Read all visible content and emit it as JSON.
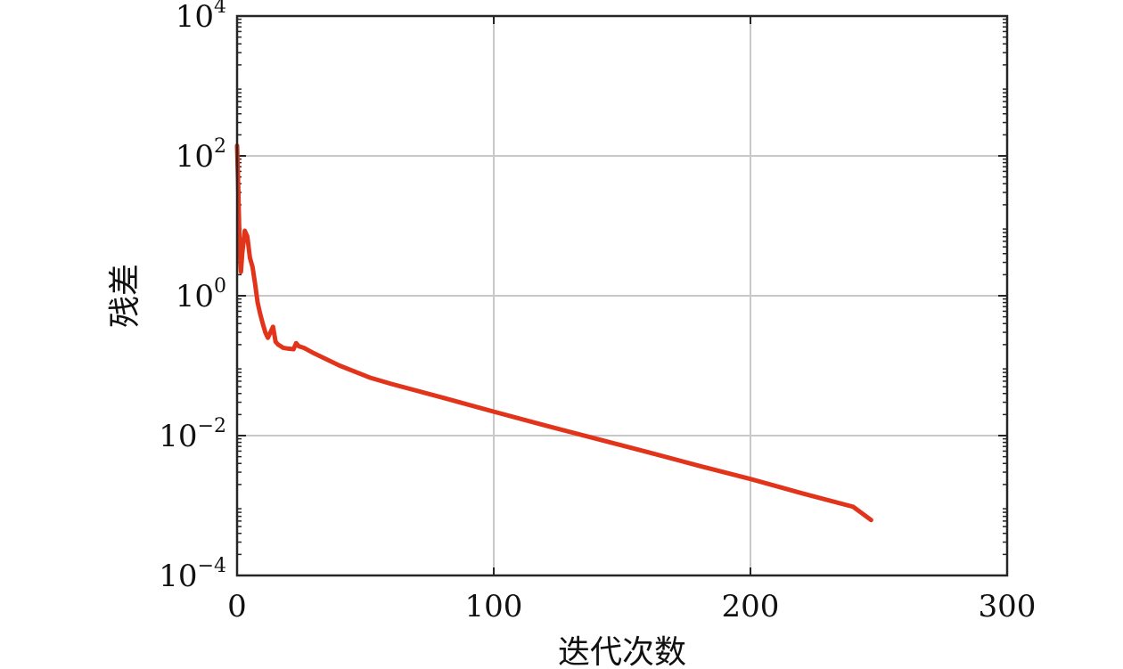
{
  "chart_data": {
    "type": "line",
    "title": "",
    "xlabel": "迭代次数",
    "ylabel": "残差",
    "xlim": [
      0,
      300
    ],
    "ylim": [
      0.0001,
      10000
    ],
    "yscale": "log",
    "grid": true,
    "xticks": [
      0,
      100,
      200,
      300
    ],
    "xtick_labels": [
      "0",
      "100",
      "200",
      "300"
    ],
    "yticks": [
      0.0001,
      0.01,
      1,
      100,
      10000
    ],
    "ytick_labels": [
      {
        "base": "10",
        "exp": "−4"
      },
      {
        "base": "10",
        "exp": "−2"
      },
      {
        "base": "10",
        "exp": "0"
      },
      {
        "base": "10",
        "exp": "2"
      },
      {
        "base": "10",
        "exp": "4"
      }
    ],
    "series": [
      {
        "color": "#e2341a",
        "x": [
          0,
          0.5,
          1,
          1.5,
          2,
          3,
          4,
          5,
          6,
          7,
          8,
          9,
          10,
          11,
          12,
          13,
          14,
          15,
          16,
          17,
          18,
          20,
          22,
          23,
          24,
          26,
          30,
          40,
          52,
          60,
          80,
          100,
          120,
          140,
          160,
          180,
          200,
          220,
          240,
          247
        ],
        "y": [
          140,
          30,
          5,
          2.2,
          4,
          8.5,
          7,
          3.5,
          2.6,
          1.5,
          0.8,
          0.55,
          0.4,
          0.3,
          0.25,
          0.3,
          0.36,
          0.22,
          0.2,
          0.19,
          0.18,
          0.175,
          0.172,
          0.21,
          0.19,
          0.18,
          0.15,
          0.1,
          0.067,
          0.055,
          0.035,
          0.022,
          0.014,
          0.009,
          0.0058,
          0.0037,
          0.0024,
          0.0015,
          0.00096,
          0.00062
        ]
      }
    ]
  }
}
